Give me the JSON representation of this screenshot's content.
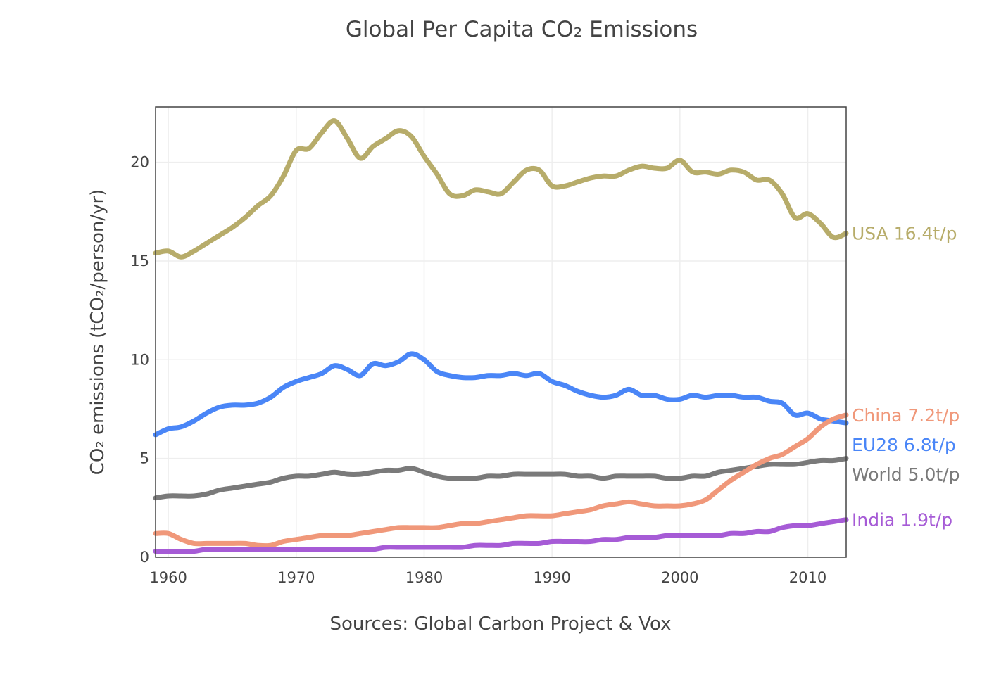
{
  "chart_data": {
    "type": "line",
    "title": "Global Per Capita CO₂ Emissions",
    "xlabel": "Sources: Global Carbon Project & Vox",
    "ylabel": "CO₂ emissions (tCO₂/person/yr)",
    "xlim": [
      1959,
      2013
    ],
    "ylim": [
      0,
      22.8
    ],
    "x_ticks": [
      1960,
      1970,
      1980,
      1990,
      2000,
      2010
    ],
    "y_ticks": [
      0,
      5,
      10,
      15,
      20
    ],
    "grid": true,
    "legend": "none",
    "series": [
      {
        "id": "usa",
        "color": "#b7ac6a",
        "end_label": "USA 16.4t/p",
        "points": [
          [
            1959,
            15.4
          ],
          [
            1960,
            15.5
          ],
          [
            1961,
            15.2
          ],
          [
            1962,
            15.5
          ],
          [
            1963,
            15.9
          ],
          [
            1964,
            16.3
          ],
          [
            1965,
            16.7
          ],
          [
            1966,
            17.2
          ],
          [
            1967,
            17.8
          ],
          [
            1968,
            18.3
          ],
          [
            1969,
            19.3
          ],
          [
            1970,
            20.6
          ],
          [
            1971,
            20.7
          ],
          [
            1972,
            21.5
          ],
          [
            1973,
            22.1
          ],
          [
            1974,
            21.2
          ],
          [
            1975,
            20.2
          ],
          [
            1976,
            20.8
          ],
          [
            1977,
            21.2
          ],
          [
            1978,
            21.6
          ],
          [
            1979,
            21.3
          ],
          [
            1980,
            20.3
          ],
          [
            1981,
            19.4
          ],
          [
            1982,
            18.4
          ],
          [
            1983,
            18.3
          ],
          [
            1984,
            18.6
          ],
          [
            1985,
            18.5
          ],
          [
            1986,
            18.4
          ],
          [
            1987,
            19.0
          ],
          [
            1988,
            19.6
          ],
          [
            1989,
            19.6
          ],
          [
            1990,
            18.8
          ],
          [
            1991,
            18.8
          ],
          [
            1992,
            19.0
          ],
          [
            1993,
            19.2
          ],
          [
            1994,
            19.3
          ],
          [
            1995,
            19.3
          ],
          [
            1996,
            19.6
          ],
          [
            1997,
            19.8
          ],
          [
            1998,
            19.7
          ],
          [
            1999,
            19.7
          ],
          [
            2000,
            20.1
          ],
          [
            2001,
            19.5
          ],
          [
            2002,
            19.5
          ],
          [
            2003,
            19.4
          ],
          [
            2004,
            19.6
          ],
          [
            2005,
            19.5
          ],
          [
            2006,
            19.1
          ],
          [
            2007,
            19.1
          ],
          [
            2008,
            18.4
          ],
          [
            2009,
            17.2
          ],
          [
            2010,
            17.4
          ],
          [
            2011,
            16.9
          ],
          [
            2012,
            16.2
          ],
          [
            2013,
            16.4
          ]
        ]
      },
      {
        "id": "eu28",
        "color": "#4a86f7",
        "end_label": "EU28 6.8t/p",
        "points": [
          [
            1959,
            6.2
          ],
          [
            1960,
            6.5
          ],
          [
            1961,
            6.6
          ],
          [
            1962,
            6.9
          ],
          [
            1963,
            7.3
          ],
          [
            1964,
            7.6
          ],
          [
            1965,
            7.7
          ],
          [
            1966,
            7.7
          ],
          [
            1967,
            7.8
          ],
          [
            1968,
            8.1
          ],
          [
            1969,
            8.6
          ],
          [
            1970,
            8.9
          ],
          [
            1971,
            9.1
          ],
          [
            1972,
            9.3
          ],
          [
            1973,
            9.7
          ],
          [
            1974,
            9.5
          ],
          [
            1975,
            9.2
          ],
          [
            1976,
            9.8
          ],
          [
            1977,
            9.7
          ],
          [
            1978,
            9.9
          ],
          [
            1979,
            10.3
          ],
          [
            1980,
            10.0
          ],
          [
            1981,
            9.4
          ],
          [
            1982,
            9.2
          ],
          [
            1983,
            9.1
          ],
          [
            1984,
            9.1
          ],
          [
            1985,
            9.2
          ],
          [
            1986,
            9.2
          ],
          [
            1987,
            9.3
          ],
          [
            1988,
            9.2
          ],
          [
            1989,
            9.3
          ],
          [
            1990,
            8.9
          ],
          [
            1991,
            8.7
          ],
          [
            1992,
            8.4
          ],
          [
            1993,
            8.2
          ],
          [
            1994,
            8.1
          ],
          [
            1995,
            8.2
          ],
          [
            1996,
            8.5
          ],
          [
            1997,
            8.2
          ],
          [
            1998,
            8.2
          ],
          [
            1999,
            8.0
          ],
          [
            2000,
            8.0
          ],
          [
            2001,
            8.2
          ],
          [
            2002,
            8.1
          ],
          [
            2003,
            8.2
          ],
          [
            2004,
            8.2
          ],
          [
            2005,
            8.1
          ],
          [
            2006,
            8.1
          ],
          [
            2007,
            7.9
          ],
          [
            2008,
            7.8
          ],
          [
            2009,
            7.2
          ],
          [
            2010,
            7.3
          ],
          [
            2011,
            7.0
          ],
          [
            2012,
            6.9
          ],
          [
            2013,
            6.8
          ]
        ]
      },
      {
        "id": "world",
        "color": "#7a7a7a",
        "end_label": "World 5.0t/p",
        "points": [
          [
            1959,
            3.0
          ],
          [
            1960,
            3.1
          ],
          [
            1961,
            3.1
          ],
          [
            1962,
            3.1
          ],
          [
            1963,
            3.2
          ],
          [
            1964,
            3.4
          ],
          [
            1965,
            3.5
          ],
          [
            1966,
            3.6
          ],
          [
            1967,
            3.7
          ],
          [
            1968,
            3.8
          ],
          [
            1969,
            4.0
          ],
          [
            1970,
            4.1
          ],
          [
            1971,
            4.1
          ],
          [
            1972,
            4.2
          ],
          [
            1973,
            4.3
          ],
          [
            1974,
            4.2
          ],
          [
            1975,
            4.2
          ],
          [
            1976,
            4.3
          ],
          [
            1977,
            4.4
          ],
          [
            1978,
            4.4
          ],
          [
            1979,
            4.5
          ],
          [
            1980,
            4.3
          ],
          [
            1981,
            4.1
          ],
          [
            1982,
            4.0
          ],
          [
            1983,
            4.0
          ],
          [
            1984,
            4.0
          ],
          [
            1985,
            4.1
          ],
          [
            1986,
            4.1
          ],
          [
            1987,
            4.2
          ],
          [
            1988,
            4.2
          ],
          [
            1989,
            4.2
          ],
          [
            1990,
            4.2
          ],
          [
            1991,
            4.2
          ],
          [
            1992,
            4.1
          ],
          [
            1993,
            4.1
          ],
          [
            1994,
            4.0
          ],
          [
            1995,
            4.1
          ],
          [
            1996,
            4.1
          ],
          [
            1997,
            4.1
          ],
          [
            1998,
            4.1
          ],
          [
            1999,
            4.0
          ],
          [
            2000,
            4.0
          ],
          [
            2001,
            4.1
          ],
          [
            2002,
            4.1
          ],
          [
            2003,
            4.3
          ],
          [
            2004,
            4.4
          ],
          [
            2005,
            4.5
          ],
          [
            2006,
            4.6
          ],
          [
            2007,
            4.7
          ],
          [
            2008,
            4.7
          ],
          [
            2009,
            4.7
          ],
          [
            2010,
            4.8
          ],
          [
            2011,
            4.9
          ],
          [
            2012,
            4.9
          ],
          [
            2013,
            5.0
          ]
        ]
      },
      {
        "id": "china",
        "color": "#f0987a",
        "end_label": "China 7.2t/p",
        "points": [
          [
            1959,
            1.2
          ],
          [
            1960,
            1.2
          ],
          [
            1961,
            0.9
          ],
          [
            1962,
            0.7
          ],
          [
            1963,
            0.7
          ],
          [
            1964,
            0.7
          ],
          [
            1965,
            0.7
          ],
          [
            1966,
            0.7
          ],
          [
            1967,
            0.6
          ],
          [
            1968,
            0.6
          ],
          [
            1969,
            0.8
          ],
          [
            1970,
            0.9
          ],
          [
            1971,
            1.0
          ],
          [
            1972,
            1.1
          ],
          [
            1973,
            1.1
          ],
          [
            1974,
            1.1
          ],
          [
            1975,
            1.2
          ],
          [
            1976,
            1.3
          ],
          [
            1977,
            1.4
          ],
          [
            1978,
            1.5
          ],
          [
            1979,
            1.5
          ],
          [
            1980,
            1.5
          ],
          [
            1981,
            1.5
          ],
          [
            1982,
            1.6
          ],
          [
            1983,
            1.7
          ],
          [
            1984,
            1.7
          ],
          [
            1985,
            1.8
          ],
          [
            1986,
            1.9
          ],
          [
            1987,
            2.0
          ],
          [
            1988,
            2.1
          ],
          [
            1989,
            2.1
          ],
          [
            1990,
            2.1
          ],
          [
            1991,
            2.2
          ],
          [
            1992,
            2.3
          ],
          [
            1993,
            2.4
          ],
          [
            1994,
            2.6
          ],
          [
            1995,
            2.7
          ],
          [
            1996,
            2.8
          ],
          [
            1997,
            2.7
          ],
          [
            1998,
            2.6
          ],
          [
            1999,
            2.6
          ],
          [
            2000,
            2.6
          ],
          [
            2001,
            2.7
          ],
          [
            2002,
            2.9
          ],
          [
            2003,
            3.4
          ],
          [
            2004,
            3.9
          ],
          [
            2005,
            4.3
          ],
          [
            2006,
            4.7
          ],
          [
            2007,
            5.0
          ],
          [
            2008,
            5.2
          ],
          [
            2009,
            5.6
          ],
          [
            2010,
            6.0
          ],
          [
            2011,
            6.6
          ],
          [
            2012,
            7.0
          ],
          [
            2013,
            7.2
          ]
        ]
      },
      {
        "id": "india",
        "color": "#a65bd6",
        "end_label": "India 1.9t/p",
        "points": [
          [
            1959,
            0.3
          ],
          [
            1960,
            0.3
          ],
          [
            1961,
            0.3
          ],
          [
            1962,
            0.3
          ],
          [
            1963,
            0.4
          ],
          [
            1964,
            0.4
          ],
          [
            1965,
            0.4
          ],
          [
            1966,
            0.4
          ],
          [
            1967,
            0.4
          ],
          [
            1968,
            0.4
          ],
          [
            1969,
            0.4
          ],
          [
            1970,
            0.4
          ],
          [
            1971,
            0.4
          ],
          [
            1972,
            0.4
          ],
          [
            1973,
            0.4
          ],
          [
            1974,
            0.4
          ],
          [
            1975,
            0.4
          ],
          [
            1976,
            0.4
          ],
          [
            1977,
            0.5
          ],
          [
            1978,
            0.5
          ],
          [
            1979,
            0.5
          ],
          [
            1980,
            0.5
          ],
          [
            1981,
            0.5
          ],
          [
            1982,
            0.5
          ],
          [
            1983,
            0.5
          ],
          [
            1984,
            0.6
          ],
          [
            1985,
            0.6
          ],
          [
            1986,
            0.6
          ],
          [
            1987,
            0.7
          ],
          [
            1988,
            0.7
          ],
          [
            1989,
            0.7
          ],
          [
            1990,
            0.8
          ],
          [
            1991,
            0.8
          ],
          [
            1992,
            0.8
          ],
          [
            1993,
            0.8
          ],
          [
            1994,
            0.9
          ],
          [
            1995,
            0.9
          ],
          [
            1996,
            1.0
          ],
          [
            1997,
            1.0
          ],
          [
            1998,
            1.0
          ],
          [
            1999,
            1.1
          ],
          [
            2000,
            1.1
          ],
          [
            2001,
            1.1
          ],
          [
            2002,
            1.1
          ],
          [
            2003,
            1.1
          ],
          [
            2004,
            1.2
          ],
          [
            2005,
            1.2
          ],
          [
            2006,
            1.3
          ],
          [
            2007,
            1.3
          ],
          [
            2008,
            1.5
          ],
          [
            2009,
            1.6
          ],
          [
            2010,
            1.6
          ],
          [
            2011,
            1.7
          ],
          [
            2012,
            1.8
          ],
          [
            2013,
            1.9
          ]
        ]
      }
    ]
  }
}
